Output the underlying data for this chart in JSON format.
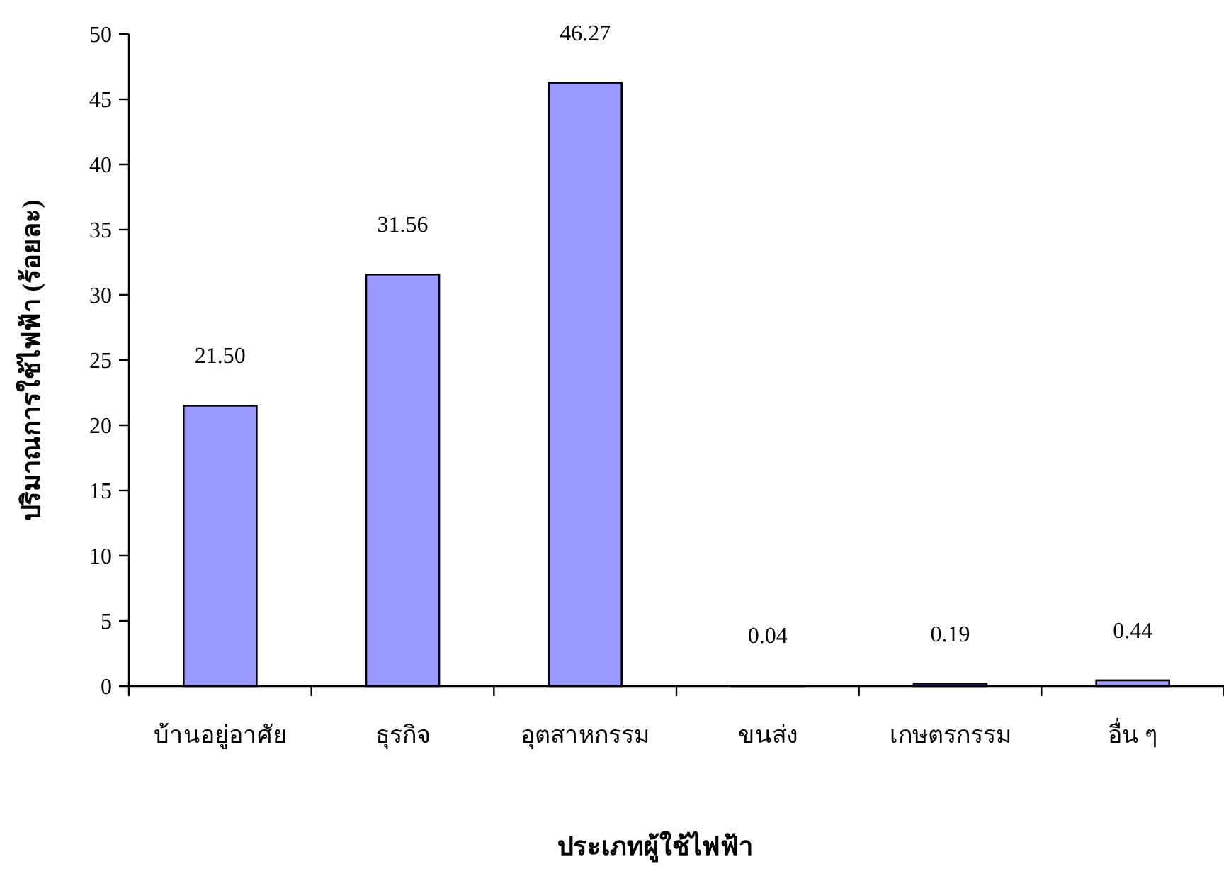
{
  "chart_data": {
    "type": "bar",
    "xlabel": "ประเภทผู้ใช้ไฟฟ้า",
    "ylabel": "ปริมาณการใช้ไฟฟ้า (ร้อยละ)",
    "categories": [
      "บ้านอยู่อาศัย",
      "ธุรกิจ",
      "อุตสาหกรรม",
      "ขนส่ง",
      "เกษตรกรรม",
      "อื่น ๆ"
    ],
    "values": [
      21.5,
      31.56,
      46.27,
      0.04,
      0.19,
      0.44
    ],
    "value_labels": [
      "21.50",
      "31.56",
      "46.27",
      "0.04",
      "0.19",
      "0.44"
    ],
    "color": "#9999ff",
    "ylim": [
      0,
      50
    ],
    "yticks": [
      0,
      5,
      10,
      15,
      20,
      25,
      30,
      35,
      40,
      45,
      50
    ]
  }
}
